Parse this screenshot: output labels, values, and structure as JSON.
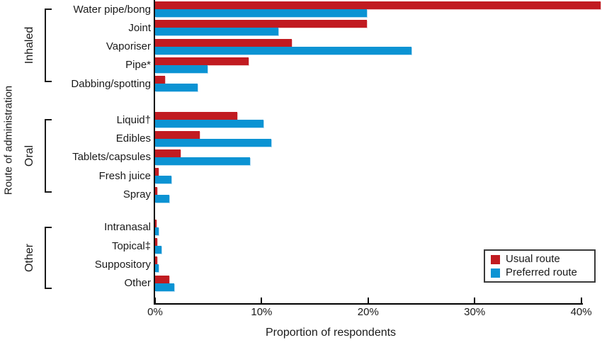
{
  "chart_data": {
    "type": "bar",
    "orientation": "horizontal",
    "xlabel": "Proportion of respondents",
    "ylabel": "Route of administration",
    "xlim": [
      0,
      42
    ],
    "xticks": [
      0,
      10,
      20,
      30,
      40
    ],
    "xtick_labels": [
      "0%",
      "10%",
      "20%",
      "30%",
      "40%"
    ],
    "grid": false,
    "legend": {
      "position": "bottom-right",
      "entries": [
        {
          "label": "Usual route",
          "color": "#c11b21"
        },
        {
          "label": "Preferred route",
          "color": "#0b93d3"
        }
      ]
    },
    "series_names": [
      "Usual route",
      "Preferred route"
    ],
    "groups": [
      {
        "label": "Inhaled",
        "categories": [
          {
            "label": "Water pipe/bong",
            "usual": 41.8,
            "preferred": 19.9
          },
          {
            "label": "Joint",
            "usual": 19.9,
            "preferred": 11.6
          },
          {
            "label": "Vaporiser",
            "usual": 12.8,
            "preferred": 24.1
          },
          {
            "label": "Pipe*",
            "usual": 8.8,
            "preferred": 4.9
          },
          {
            "label": "Dabbing/spotting",
            "usual": 0.9,
            "preferred": 4.0
          }
        ]
      },
      {
        "label": "Oral",
        "categories": [
          {
            "label": "Liquid†",
            "usual": 7.7,
            "preferred": 10.2
          },
          {
            "label": "Edibles",
            "usual": 4.2,
            "preferred": 10.9
          },
          {
            "label": "Tablets/capsules",
            "usual": 2.4,
            "preferred": 8.9
          },
          {
            "label": "Fresh juice",
            "usual": 0.3,
            "preferred": 1.5
          },
          {
            "label": "Spray",
            "usual": 0.2,
            "preferred": 1.3
          }
        ]
      },
      {
        "label": "Other",
        "categories": [
          {
            "label": "Intranasal",
            "usual": 0.1,
            "preferred": 0.3
          },
          {
            "label": "Topical‡",
            "usual": 0.2,
            "preferred": 0.6
          },
          {
            "label": "Suppository",
            "usual": 0.2,
            "preferred": 0.3
          },
          {
            "label": "Other",
            "usual": 1.3,
            "preferred": 1.8
          }
        ]
      }
    ],
    "colors": {
      "usual": "#c11b21",
      "preferred": "#0b93d3"
    }
  }
}
